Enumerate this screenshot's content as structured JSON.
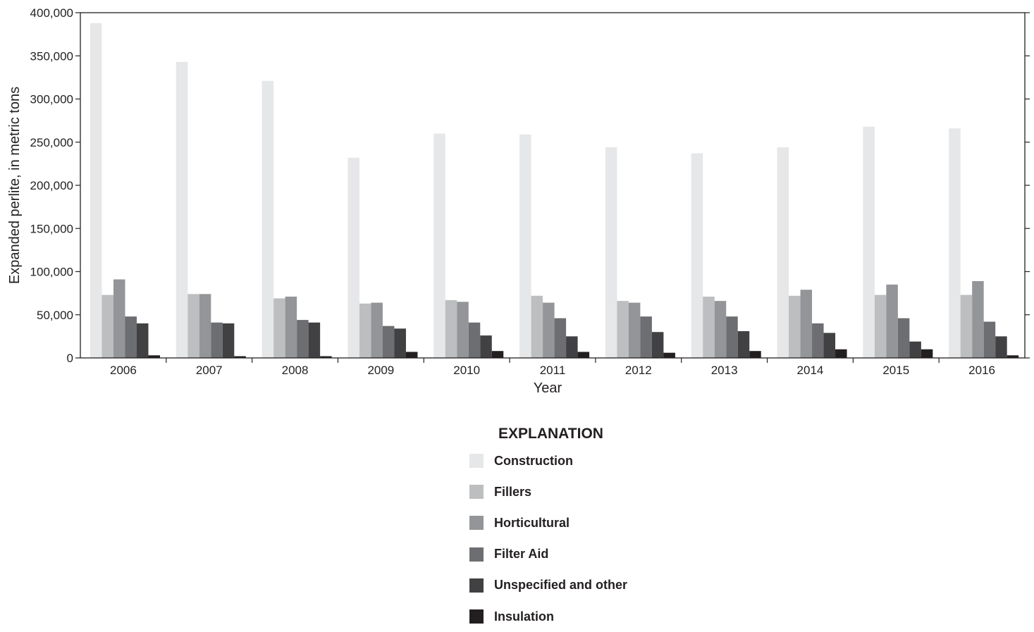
{
  "chart_data": {
    "type": "bar",
    "title": "",
    "xlabel": "Year",
    "ylabel": "Expanded perlite, in metric tons",
    "ylim": [
      0,
      400000
    ],
    "yticks": [
      0,
      50000,
      100000,
      150000,
      200000,
      250000,
      300000,
      350000,
      400000
    ],
    "ytick_labels": [
      "0",
      "50,000",
      "100,000",
      "150,000",
      "200,000",
      "250,000",
      "300,000",
      "350,000",
      "400,000"
    ],
    "categories": [
      "2006",
      "2007",
      "2008",
      "2009",
      "2010",
      "2011",
      "2012",
      "2013",
      "2014",
      "2015",
      "2016"
    ],
    "grid": false,
    "legend_title": "EXPLANATION",
    "legend_position": "bottom-center",
    "series": [
      {
        "name": "Construction",
        "color": "#e6e7e8",
        "values": [
          388000,
          343000,
          321000,
          232000,
          260000,
          259000,
          244000,
          237000,
          244000,
          268000,
          266000
        ]
      },
      {
        "name": "Fillers",
        "color": "#bcbec0",
        "values": [
          73000,
          74000,
          69000,
          63000,
          67000,
          72000,
          66000,
          71000,
          72000,
          73000,
          73000
        ]
      },
      {
        "name": "Horticultural",
        "color": "#939598",
        "values": [
          91000,
          74000,
          71000,
          64000,
          65000,
          64000,
          64000,
          66000,
          79000,
          85000,
          89000
        ]
      },
      {
        "name": "Filter Aid",
        "color": "#6d6e71",
        "values": [
          48000,
          41000,
          44000,
          37000,
          41000,
          46000,
          48000,
          48000,
          40000,
          46000,
          42000
        ]
      },
      {
        "name": "Unspecified and other",
        "color": "#414042",
        "values": [
          40000,
          40000,
          41000,
          34000,
          26000,
          25000,
          30000,
          31000,
          29000,
          19000,
          25000
        ]
      },
      {
        "name": "Insulation",
        "color": "#231f20",
        "values": [
          3000,
          2000,
          2000,
          7000,
          8000,
          7000,
          6000,
          8000,
          10000,
          10000,
          3000
        ]
      }
    ]
  }
}
